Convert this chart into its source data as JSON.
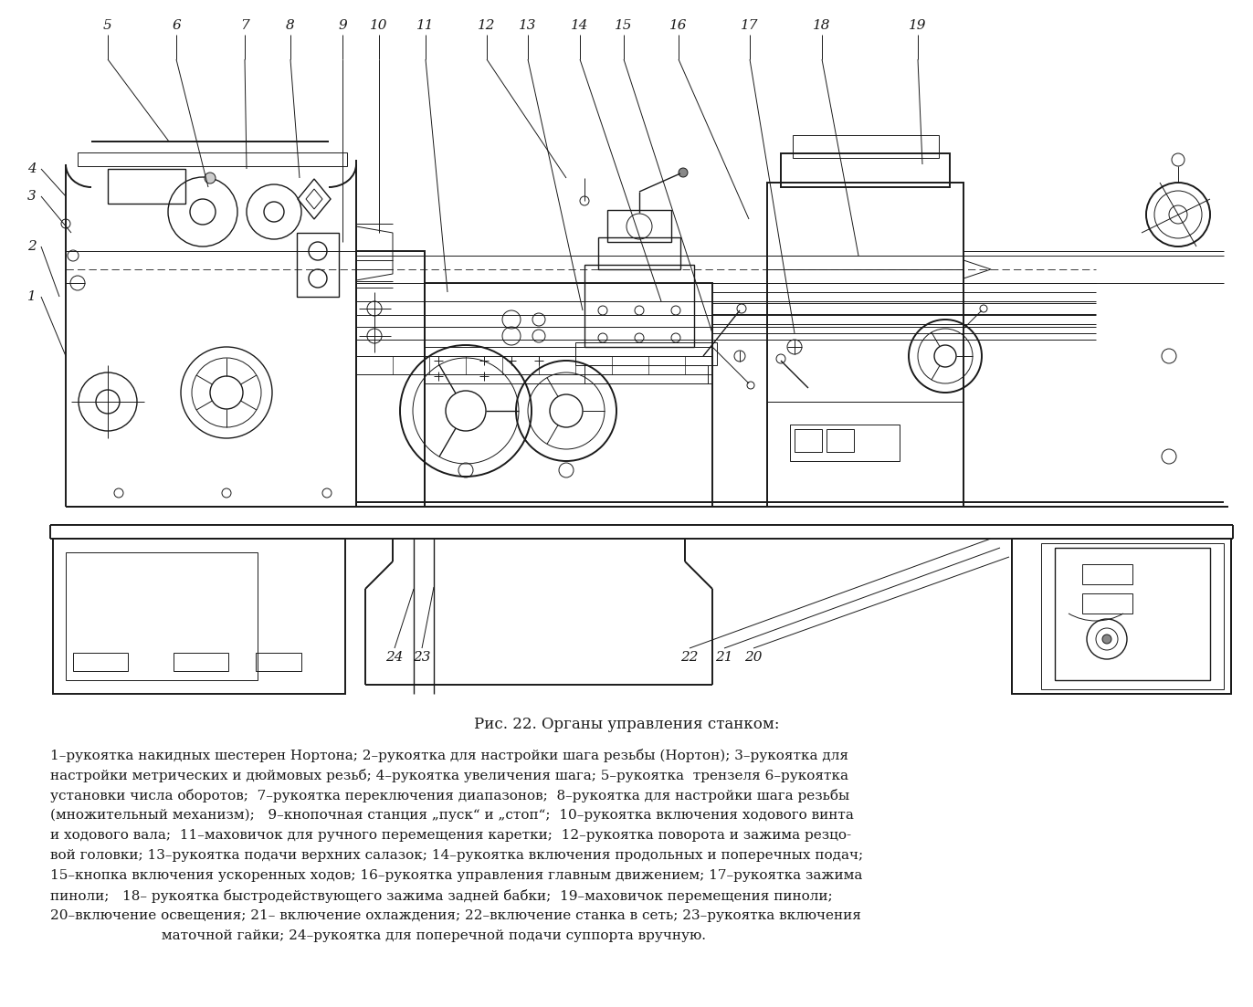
{
  "figure_title": "Рис. 22. Органы управления станком:",
  "bg_color": "#f5f5f0",
  "drawing_color": "#1a1a1a",
  "font_family": "DejaVu Serif",
  "caption_fontsize": 12,
  "legend_fontsize": 11,
  "legend_lines": [
    "1–рукоятка накидных шестерен Нортона; 2–рукоятка для настройки шага резьбы (Нортон); 3–рукоятка для",
    "настройки метрических и дюймовых резьб; 4–рукоятка увеличения шага; 5–рукоятка  трензеля 6–рукоятка",
    "установки числа оборотов;  7–рукоятка переключения диапазонов;  8–рукоятка для настройки шага резьбы",
    "(множительный механизм);   9–кнопочная станция „пуск“ и „стоп“;  10–рукоятка включения ходового винта",
    "и ходового вала;  11–маховичок для ручного перемещения каретки;  12–рукоятка поворота и зажима резцо-",
    "вой головки; 13–рукоятка подачи верхних салазок; 14–рукоятка включения продольных и поперечных подач;",
    "15–кнопка включения ускоренных ходов; 16–рукоятка управления главным движением; 17–рукоятка зажима",
    "пиноли;   18– рукоятка быстродействующего зажима задней бабки;  19–маховичок перемещения пиноли;",
    "20–включение освещения; 21– включение охлаждения; 22–включение станка в сеть; 23–рукоятка включения",
    "                         маточной гайки; 24–рукоятка для поперечной подачи суппорта вручную."
  ],
  "callouts_top": [
    [
      5,
      118,
      28,
      185,
      155
    ],
    [
      6,
      193,
      28,
      228,
      205
    ],
    [
      7,
      268,
      28,
      270,
      185
    ],
    [
      8,
      318,
      28,
      328,
      195
    ],
    [
      9,
      375,
      28,
      375,
      265
    ],
    [
      10,
      415,
      28,
      415,
      255
    ],
    [
      11,
      466,
      28,
      490,
      320
    ],
    [
      12,
      533,
      28,
      620,
      195
    ],
    [
      13,
      578,
      28,
      638,
      340
    ],
    [
      14,
      635,
      28,
      724,
      330
    ],
    [
      15,
      683,
      28,
      780,
      365
    ],
    [
      16,
      743,
      28,
      820,
      240
    ],
    [
      17,
      821,
      28,
      870,
      365
    ],
    [
      18,
      900,
      28,
      940,
      280
    ],
    [
      19,
      1005,
      28,
      1010,
      180
    ]
  ],
  "callouts_left": [
    [
      4,
      35,
      185,
      72,
      215
    ],
    [
      3,
      35,
      215,
      78,
      255
    ],
    [
      2,
      35,
      270,
      65,
      325
    ],
    [
      1,
      35,
      325,
      72,
      390
    ]
  ],
  "callouts_bottom": [
    [
      24,
      432,
      720,
      453,
      645
    ],
    [
      23,
      462,
      720,
      475,
      643
    ],
    [
      22,
      755,
      720,
      1085,
      590
    ],
    [
      21,
      793,
      720,
      1095,
      600
    ],
    [
      20,
      825,
      720,
      1105,
      610
    ]
  ]
}
